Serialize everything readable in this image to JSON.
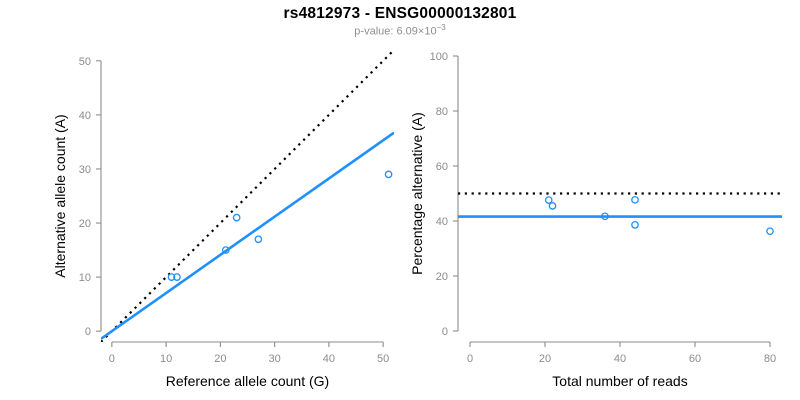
{
  "header": {
    "title": "rs4812973 - ENSG00000132801",
    "pvalue_prefix": "p-value: 6.09×10",
    "pvalue_exponent": "−3"
  },
  "colors": {
    "accent_blue": "#1E90FF",
    "axis_gray": "#8C8C8C",
    "tick_label_gray": "#8C8C8C",
    "subtitle_gray": "#8F8F8F",
    "text_black": "#000000",
    "background": "#FFFFFF"
  },
  "chart_data": [
    {
      "type": "scatter",
      "panel": "left",
      "title": "",
      "xlabel": "Reference allele count (G)",
      "ylabel": "Alternative allele count (A)",
      "xlim": [
        0,
        50
      ],
      "ylim": [
        0,
        50
      ],
      "xticks": [
        0,
        10,
        20,
        30,
        40,
        50
      ],
      "yticks": [
        0,
        10,
        20,
        30,
        40,
        50
      ],
      "grid": false,
      "legend": false,
      "points": [
        [
          11,
          10
        ],
        [
          12,
          10
        ],
        [
          21,
          15
        ],
        [
          23,
          21
        ],
        [
          27,
          17
        ],
        [
          51,
          29
        ]
      ],
      "lines": [
        {
          "name": "identity-line",
          "style": "dotted",
          "color": "#000000",
          "slope": 1,
          "intercept": 0
        },
        {
          "name": "fit-line",
          "style": "solid",
          "color": "#1E90FF",
          "slope": 0.706,
          "intercept": 0
        }
      ]
    },
    {
      "type": "scatter",
      "panel": "right",
      "title": "",
      "xlabel": "Total number of reads",
      "ylabel": "Percentage alternative (A)",
      "xlim": [
        0,
        80
      ],
      "ylim": [
        0,
        100
      ],
      "xticks": [
        0,
        20,
        40,
        60,
        80
      ],
      "yticks": [
        0,
        20,
        40,
        60,
        80,
        100
      ],
      "grid": false,
      "legend": false,
      "points": [
        [
          21,
          47.6
        ],
        [
          22,
          45.5
        ],
        [
          36,
          41.7
        ],
        [
          44,
          47.7
        ],
        [
          44,
          38.6
        ],
        [
          80,
          36.3
        ]
      ],
      "lines": [
        {
          "name": "fifty-percent-line",
          "style": "dotted",
          "color": "#000000",
          "slope": 0,
          "intercept": 50
        },
        {
          "name": "mean-percentage-line",
          "style": "solid",
          "color": "#1E90FF",
          "slope": 0,
          "intercept": 41.6
        }
      ]
    }
  ]
}
